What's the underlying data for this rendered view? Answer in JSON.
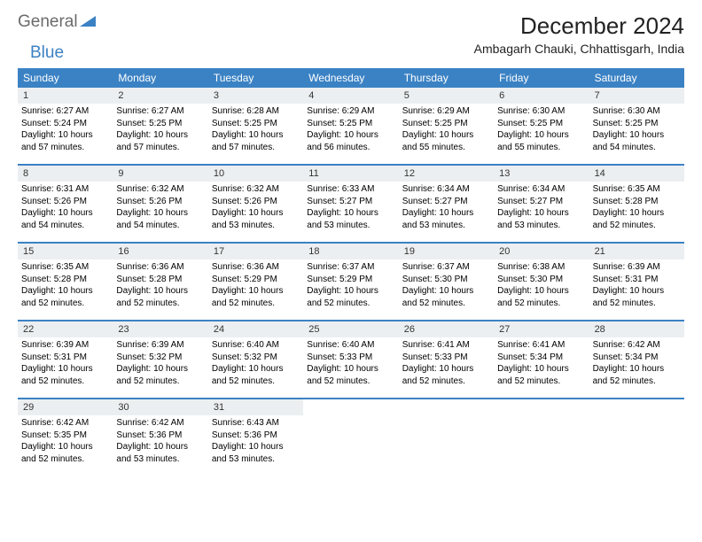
{
  "logo": {
    "text_a": "General",
    "text_b": "Blue"
  },
  "title": "December 2024",
  "location": "Ambagarh Chauki, Chhattisgarh, India",
  "colors": {
    "header_bg": "#3b82c4",
    "daynum_bg": "#eceff1"
  },
  "day_labels": [
    "Sunday",
    "Monday",
    "Tuesday",
    "Wednesday",
    "Thursday",
    "Friday",
    "Saturday"
  ],
  "weeks": [
    [
      {
        "n": "1",
        "sr": "Sunrise: 6:27 AM",
        "ss": "Sunset: 5:24 PM",
        "dl": "Daylight: 10 hours and 57 minutes."
      },
      {
        "n": "2",
        "sr": "Sunrise: 6:27 AM",
        "ss": "Sunset: 5:25 PM",
        "dl": "Daylight: 10 hours and 57 minutes."
      },
      {
        "n": "3",
        "sr": "Sunrise: 6:28 AM",
        "ss": "Sunset: 5:25 PM",
        "dl": "Daylight: 10 hours and 57 minutes."
      },
      {
        "n": "4",
        "sr": "Sunrise: 6:29 AM",
        "ss": "Sunset: 5:25 PM",
        "dl": "Daylight: 10 hours and 56 minutes."
      },
      {
        "n": "5",
        "sr": "Sunrise: 6:29 AM",
        "ss": "Sunset: 5:25 PM",
        "dl": "Daylight: 10 hours and 55 minutes."
      },
      {
        "n": "6",
        "sr": "Sunrise: 6:30 AM",
        "ss": "Sunset: 5:25 PM",
        "dl": "Daylight: 10 hours and 55 minutes."
      },
      {
        "n": "7",
        "sr": "Sunrise: 6:30 AM",
        "ss": "Sunset: 5:25 PM",
        "dl": "Daylight: 10 hours and 54 minutes."
      }
    ],
    [
      {
        "n": "8",
        "sr": "Sunrise: 6:31 AM",
        "ss": "Sunset: 5:26 PM",
        "dl": "Daylight: 10 hours and 54 minutes."
      },
      {
        "n": "9",
        "sr": "Sunrise: 6:32 AM",
        "ss": "Sunset: 5:26 PM",
        "dl": "Daylight: 10 hours and 54 minutes."
      },
      {
        "n": "10",
        "sr": "Sunrise: 6:32 AM",
        "ss": "Sunset: 5:26 PM",
        "dl": "Daylight: 10 hours and 53 minutes."
      },
      {
        "n": "11",
        "sr": "Sunrise: 6:33 AM",
        "ss": "Sunset: 5:27 PM",
        "dl": "Daylight: 10 hours and 53 minutes."
      },
      {
        "n": "12",
        "sr": "Sunrise: 6:34 AM",
        "ss": "Sunset: 5:27 PM",
        "dl": "Daylight: 10 hours and 53 minutes."
      },
      {
        "n": "13",
        "sr": "Sunrise: 6:34 AM",
        "ss": "Sunset: 5:27 PM",
        "dl": "Daylight: 10 hours and 53 minutes."
      },
      {
        "n": "14",
        "sr": "Sunrise: 6:35 AM",
        "ss": "Sunset: 5:28 PM",
        "dl": "Daylight: 10 hours and 52 minutes."
      }
    ],
    [
      {
        "n": "15",
        "sr": "Sunrise: 6:35 AM",
        "ss": "Sunset: 5:28 PM",
        "dl": "Daylight: 10 hours and 52 minutes."
      },
      {
        "n": "16",
        "sr": "Sunrise: 6:36 AM",
        "ss": "Sunset: 5:28 PM",
        "dl": "Daylight: 10 hours and 52 minutes."
      },
      {
        "n": "17",
        "sr": "Sunrise: 6:36 AM",
        "ss": "Sunset: 5:29 PM",
        "dl": "Daylight: 10 hours and 52 minutes."
      },
      {
        "n": "18",
        "sr": "Sunrise: 6:37 AM",
        "ss": "Sunset: 5:29 PM",
        "dl": "Daylight: 10 hours and 52 minutes."
      },
      {
        "n": "19",
        "sr": "Sunrise: 6:37 AM",
        "ss": "Sunset: 5:30 PM",
        "dl": "Daylight: 10 hours and 52 minutes."
      },
      {
        "n": "20",
        "sr": "Sunrise: 6:38 AM",
        "ss": "Sunset: 5:30 PM",
        "dl": "Daylight: 10 hours and 52 minutes."
      },
      {
        "n": "21",
        "sr": "Sunrise: 6:39 AM",
        "ss": "Sunset: 5:31 PM",
        "dl": "Daylight: 10 hours and 52 minutes."
      }
    ],
    [
      {
        "n": "22",
        "sr": "Sunrise: 6:39 AM",
        "ss": "Sunset: 5:31 PM",
        "dl": "Daylight: 10 hours and 52 minutes."
      },
      {
        "n": "23",
        "sr": "Sunrise: 6:39 AM",
        "ss": "Sunset: 5:32 PM",
        "dl": "Daylight: 10 hours and 52 minutes."
      },
      {
        "n": "24",
        "sr": "Sunrise: 6:40 AM",
        "ss": "Sunset: 5:32 PM",
        "dl": "Daylight: 10 hours and 52 minutes."
      },
      {
        "n": "25",
        "sr": "Sunrise: 6:40 AM",
        "ss": "Sunset: 5:33 PM",
        "dl": "Daylight: 10 hours and 52 minutes."
      },
      {
        "n": "26",
        "sr": "Sunrise: 6:41 AM",
        "ss": "Sunset: 5:33 PM",
        "dl": "Daylight: 10 hours and 52 minutes."
      },
      {
        "n": "27",
        "sr": "Sunrise: 6:41 AM",
        "ss": "Sunset: 5:34 PM",
        "dl": "Daylight: 10 hours and 52 minutes."
      },
      {
        "n": "28",
        "sr": "Sunrise: 6:42 AM",
        "ss": "Sunset: 5:34 PM",
        "dl": "Daylight: 10 hours and 52 minutes."
      }
    ],
    [
      {
        "n": "29",
        "sr": "Sunrise: 6:42 AM",
        "ss": "Sunset: 5:35 PM",
        "dl": "Daylight: 10 hours and 52 minutes."
      },
      {
        "n": "30",
        "sr": "Sunrise: 6:42 AM",
        "ss": "Sunset: 5:36 PM",
        "dl": "Daylight: 10 hours and 53 minutes."
      },
      {
        "n": "31",
        "sr": "Sunrise: 6:43 AM",
        "ss": "Sunset: 5:36 PM",
        "dl": "Daylight: 10 hours and 53 minutes."
      },
      null,
      null,
      null,
      null
    ]
  ]
}
